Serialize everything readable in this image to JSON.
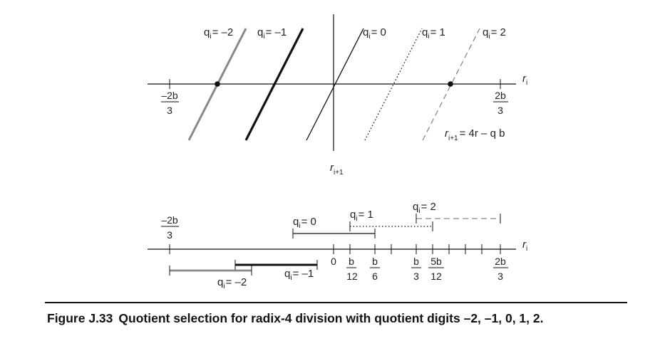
{
  "caption": {
    "label": "Figure J.33",
    "text": "Quotient selection for radix-4 division with quotient digits –2, –1, 0, 1, 2."
  },
  "top_plot": {
    "x_axis_label": {
      "main": "r",
      "sub": "i"
    },
    "y_axis_label": {
      "main": "r",
      "sub": "i+1"
    },
    "left_tick": {
      "num": "–2b",
      "den": "3"
    },
    "right_tick": {
      "num": "2b",
      "den": "3"
    },
    "formula": "= 4r – q b",
    "lines": [
      {
        "id": "m2",
        "q_label": "= –2",
        "color": "#888888",
        "style": "solid",
        "weight": "medium"
      },
      {
        "id": "m1",
        "q_label": "= –1",
        "color": "#111111",
        "style": "solid",
        "weight": "thick"
      },
      {
        "id": "z",
        "q_label": "= 0",
        "color": "#111111",
        "style": "solid",
        "weight": "thin"
      },
      {
        "id": "p1",
        "q_label": "= 1",
        "color": "#111111",
        "style": "dotted",
        "weight": "thin"
      },
      {
        "id": "p2",
        "q_label": "= 2",
        "color": "#888888",
        "style": "dashed",
        "weight": "thin"
      }
    ],
    "q_symbol": {
      "main": "q",
      "sub": "i"
    }
  },
  "bottom_plot": {
    "x_axis_label": {
      "main": "r",
      "sub": "i"
    },
    "left_tick": {
      "num": "–2b",
      "den": "3"
    },
    "zero_label": "0",
    "ticks": [
      {
        "num": "b",
        "den": "12"
      },
      {
        "num": "b",
        "den": "6"
      },
      {
        "num": "b",
        "den": "3"
      },
      {
        "num": "5b",
        "den": "12"
      },
      {
        "num": "2b",
        "den": "3"
      }
    ],
    "intervals": [
      {
        "id": "m2",
        "q_label": "= –2",
        "color": "#888888",
        "style": "solid"
      },
      {
        "id": "m1",
        "q_label": "= –1",
        "color": "#111111",
        "style": "solid"
      },
      {
        "id": "z",
        "q_label": "= 0",
        "color": "#111111",
        "style": "solid"
      },
      {
        "id": "p1",
        "q_label": "= 1",
        "color": "#111111",
        "style": "dotted"
      },
      {
        "id": "p2",
        "q_label": "= 2",
        "color": "#888888",
        "style": "dashed"
      }
    ]
  }
}
